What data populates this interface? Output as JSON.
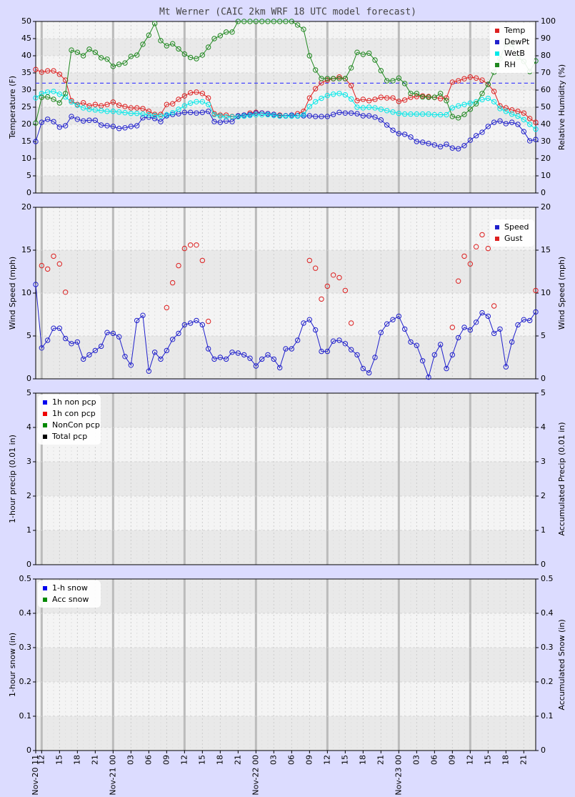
{
  "chart_data": {
    "type": "line",
    "title": "Mt Werner (CAIC 2km WRF 18 UTC model forecast)",
    "categories": [
      "Nov-20 11",
      "12",
      null,
      null,
      "15",
      null,
      null,
      "18",
      null,
      null,
      "21",
      null,
      null,
      "Nov-21 00",
      null,
      null,
      "03",
      null,
      null,
      "06",
      null,
      null,
      "09",
      null,
      null,
      "12",
      null,
      null,
      "15",
      null,
      null,
      "18",
      null,
      null,
      "21",
      null,
      null,
      "Nov-22 00",
      null,
      null,
      "03",
      null,
      null,
      "06",
      null,
      null,
      "09",
      null,
      null,
      "12",
      null,
      null,
      "15",
      null,
      null,
      "18",
      null,
      null,
      "21",
      null,
      null,
      "Nov-23 00",
      null,
      null,
      "03",
      null,
      null,
      "06",
      null,
      null,
      "09",
      null,
      null,
      "12",
      null,
      null,
      "15",
      null,
      null,
      "18",
      null,
      null,
      "21",
      null,
      null
    ],
    "panels": [
      {
        "ylabel": "Temperature (F)",
        "y2label": "Relative Humidity (%)",
        "ylim": [
          0,
          50
        ],
        "yticks": [
          0,
          5,
          10,
          15,
          20,
          25,
          30,
          35,
          40,
          45,
          50
        ],
        "y2lim": [
          0,
          100
        ],
        "y2ticks": [
          0,
          10,
          20,
          30,
          40,
          50,
          60,
          70,
          80,
          90,
          100
        ],
        "legend": "upper right",
        "reference_lines": [
          {
            "value": 32,
            "color": "#4848ff"
          }
        ],
        "series": [
          {
            "name": "Temp",
            "color": "#dd2020",
            "values": [
              36.0,
              35.2,
              35.6,
              35.6,
              34.6,
              32.9,
              26.9,
              25.8,
              26.3,
              25.4,
              25.8,
              25.4,
              25.8,
              26.5,
              25.6,
              25.2,
              24.8,
              24.8,
              24.6,
              23.8,
              22.9,
              22.9,
              25.8,
              26.0,
              27.3,
              28.3,
              29.2,
              29.4,
              29.0,
              27.7,
              23.1,
              22.7,
              22.7,
              22.3,
              22.3,
              22.7,
              23.3,
              23.5,
              23.3,
              23.1,
              22.9,
              22.7,
              22.5,
              22.7,
              23.1,
              23.8,
              27.7,
              30.4,
              32.1,
              32.9,
              33.3,
              33.8,
              33.3,
              31.3,
              26.9,
              27.3,
              26.9,
              27.3,
              27.9,
              27.7,
              27.7,
              26.7,
              27.1,
              27.9,
              28.1,
              28.3,
              28.1,
              27.9,
              27.5,
              27.7,
              32.3,
              32.7,
              33.3,
              33.8,
              33.5,
              32.9,
              31.7,
              29.6,
              25.4,
              24.8,
              24.2,
              23.8,
              23.3,
              21.7,
              20.6
            ]
          },
          {
            "name": "DewPt",
            "color": "#2020cc",
            "values": [
              15.0,
              20.6,
              21.5,
              20.8,
              19.2,
              19.6,
              22.3,
              21.5,
              21.0,
              21.2,
              21.2,
              19.8,
              19.6,
              19.4,
              18.8,
              19.0,
              19.4,
              19.6,
              21.9,
              22.1,
              21.7,
              20.8,
              22.5,
              22.9,
              23.1,
              23.5,
              23.5,
              23.3,
              23.5,
              23.8,
              20.8,
              20.6,
              21.0,
              20.8,
              22.5,
              22.7,
              22.9,
              23.3,
              23.3,
              23.1,
              22.9,
              22.5,
              22.5,
              22.7,
              22.5,
              22.5,
              22.5,
              22.3,
              22.3,
              22.3,
              22.9,
              23.5,
              23.3,
              23.3,
              23.1,
              22.5,
              22.5,
              22.1,
              21.3,
              19.8,
              18.3,
              17.3,
              17.1,
              16.3,
              15.0,
              14.8,
              14.4,
              14.0,
              13.5,
              14.2,
              13.1,
              12.9,
              13.8,
              15.4,
              16.7,
              17.7,
              19.4,
              20.6,
              21.0,
              20.2,
              20.6,
              20.0,
              17.9,
              15.2,
              15.6
            ]
          },
          {
            "name": "WetB",
            "color": "#00e8e8",
            "values": [
              27.7,
              29.0,
              29.4,
              29.6,
              28.8,
              28.0,
              26.5,
              25.6,
              24.8,
              24.4,
              24.2,
              24.0,
              23.8,
              23.8,
              23.6,
              23.4,
              23.2,
              23.2,
              23.0,
              22.8,
              22.6,
              22.4,
              22.8,
              23.4,
              24.4,
              25.4,
              26.2,
              26.6,
              26.6,
              25.8,
              22.8,
              22.4,
              22.2,
              22.2,
              22.2,
              22.4,
              22.6,
              22.8,
              22.8,
              22.8,
              22.6,
              22.4,
              22.4,
              22.4,
              22.4,
              22.8,
              25.2,
              26.6,
              27.6,
              28.4,
              28.8,
              29.0,
              28.6,
              27.4,
              25.0,
              24.8,
              25.0,
              24.8,
              24.4,
              24.0,
              23.6,
              23.2,
              23.0,
              23.0,
              23.0,
              23.0,
              23.0,
              22.8,
              22.8,
              22.8,
              24.8,
              25.4,
              25.8,
              26.2,
              26.6,
              27.2,
              27.6,
              26.6,
              24.6,
              23.8,
              23.0,
              22.4,
              21.4,
              20.0,
              18.6
            ]
          },
          {
            "name": "RH",
            "color": "#208820",
            "axis": "y2",
            "values": [
              40.8,
              55.8,
              56.0,
              54.6,
              52.5,
              58.0,
              83.3,
              82.0,
              80.0,
              83.8,
              82.0,
              78.8,
              78.0,
              73.8,
              75.0,
              75.8,
              79.6,
              80.4,
              86.7,
              92.0,
              98.8,
              88.8,
              85.8,
              87.0,
              84.0,
              81.0,
              79.0,
              78.3,
              80.4,
              85.0,
              90.0,
              91.7,
              93.8,
              93.8,
              100,
              100,
              100,
              100,
              100,
              100,
              100,
              100,
              100,
              100,
              97.9,
              95.4,
              80.0,
              71.7,
              66.7,
              66.7,
              66.7,
              66.7,
              66.7,
              72.9,
              82.0,
              80.8,
              81.5,
              77.5,
              71.3,
              65.4,
              65.4,
              67.0,
              63.8,
              58.0,
              58.0,
              56.0,
              55.8,
              55.8,
              58.0,
              53.8,
              44.6,
              43.8,
              45.8,
              48.8,
              52.0,
              58.0,
              63.3,
              70.4,
              78.3,
              87.0,
              86.7,
              79.0,
              76.7,
              70.8,
              77.0
            ]
          }
        ]
      },
      {
        "ylabel": "Wind Speed (mph)",
        "y2label": "Wind Speed (mph)",
        "ylim": [
          0,
          20
        ],
        "yticks": [
          0,
          5,
          10,
          15,
          20
        ],
        "y2lim": [
          0,
          20
        ],
        "y2ticks": [
          0,
          5,
          10,
          15,
          20
        ],
        "legend": "upper right",
        "series": [
          {
            "name": "Speed",
            "color": "#2020cc",
            "values": [
              11.0,
              3.6,
              4.5,
              5.9,
              5.9,
              4.7,
              4.1,
              4.3,
              2.3,
              2.8,
              3.3,
              3.8,
              5.4,
              5.3,
              4.9,
              2.6,
              1.6,
              6.8,
              7.4,
              0.9,
              3.1,
              2.3,
              3.3,
              4.6,
              5.3,
              6.3,
              6.5,
              6.8,
              6.3,
              3.5,
              2.3,
              2.5,
              2.3,
              3.1,
              3.0,
              2.8,
              2.4,
              1.5,
              2.3,
              2.8,
              2.3,
              1.3,
              3.5,
              3.5,
              4.5,
              6.5,
              6.9,
              5.7,
              3.2,
              3.2,
              4.4,
              4.5,
              4.1,
              3.4,
              2.8,
              1.2,
              0.7,
              2.5,
              5.4,
              6.4,
              6.9,
              7.3,
              5.8,
              4.3,
              3.9,
              2.1,
              0.2,
              2.8,
              4.0,
              1.2,
              2.8,
              4.8,
              6.0,
              5.7,
              6.6,
              7.7,
              7.3,
              5.3,
              5.8,
              1.4,
              4.3,
              6.3,
              6.9,
              6.8,
              7.8
            ]
          },
          {
            "name": "Gust",
            "color": "#dd2020",
            "markers_only": true,
            "values": [
              null,
              13.2,
              12.8,
              14.3,
              13.4,
              10.1,
              null,
              null,
              null,
              null,
              null,
              null,
              null,
              null,
              null,
              null,
              null,
              null,
              null,
              null,
              null,
              null,
              8.3,
              11.2,
              13.2,
              15.2,
              15.6,
              15.6,
              13.8,
              6.7,
              null,
              null,
              null,
              null,
              null,
              null,
              null,
              null,
              null,
              null,
              null,
              null,
              null,
              null,
              null,
              null,
              13.8,
              12.9,
              9.3,
              10.8,
              12.1,
              11.8,
              10.3,
              6.5,
              null,
              null,
              null,
              null,
              null,
              null,
              null,
              null,
              null,
              null,
              null,
              null,
              null,
              null,
              null,
              null,
              6.0,
              11.4,
              14.3,
              13.4,
              15.4,
              16.8,
              15.2,
              8.5,
              null,
              null,
              null,
              null,
              null,
              null,
              10.3
            ]
          }
        ]
      },
      {
        "ylabel": "1-hour precip (0.01 in)",
        "y2label": "Accumulated Precip (0.01 in)",
        "ylim": [
          0,
          5
        ],
        "yticks": [
          0,
          1,
          2,
          3,
          4,
          5
        ],
        "y2lim": [
          0,
          5
        ],
        "y2ticks": [
          0,
          1,
          2,
          3,
          4,
          5
        ],
        "legend": "upper left",
        "series": [
          {
            "name": "1h non pcp",
            "color": "#0000ee",
            "values": []
          },
          {
            "name": "1h con pcp",
            "color": "#ee0000",
            "values": []
          },
          {
            "name": "NonCon pcp",
            "color": "#008800",
            "values": []
          },
          {
            "name": "Total pcp",
            "color": "#000000",
            "values": []
          }
        ]
      },
      {
        "ylabel": "1-hour snow (in)",
        "y2label": "Accumulated Snow (in)",
        "ylim": [
          0,
          0.5
        ],
        "yticks": [
          0,
          0.1,
          0.2,
          0.3,
          0.4,
          0.5
        ],
        "y2lim": [
          0,
          0.5
        ],
        "y2ticks": [
          0,
          0.1,
          0.2,
          0.3,
          0.4,
          0.5
        ],
        "legend": "upper left",
        "series": [
          {
            "name": "1-h snow",
            "color": "#0000ee",
            "values": []
          },
          {
            "name": "Acc snow",
            "color": "#008800",
            "values": []
          }
        ]
      }
    ]
  }
}
